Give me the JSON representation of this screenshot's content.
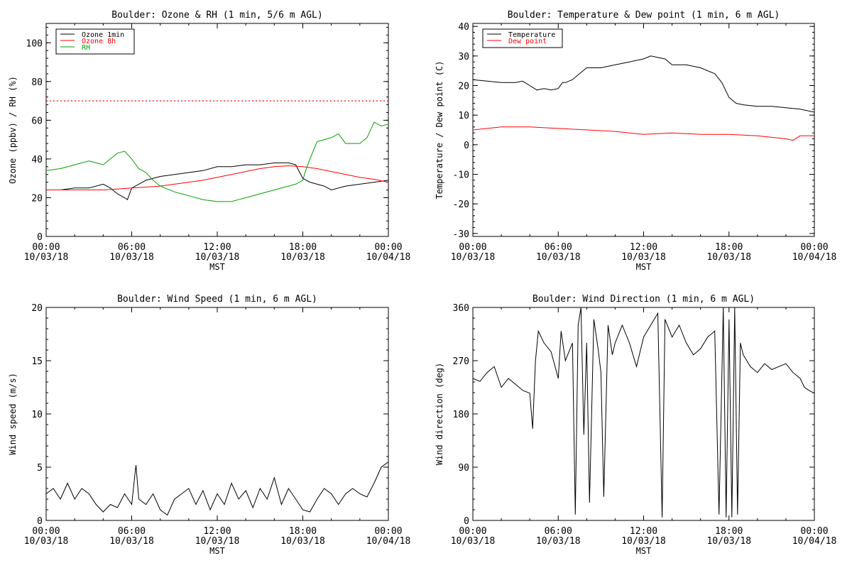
{
  "chart_data": [
    {
      "type": "line",
      "title": "Boulder: Ozone & RH (1 min, 5/6 m AGL)",
      "xlabel": "MST",
      "ylabel": "Ozone (ppbv) / RH (%)",
      "xlim": [
        0,
        24
      ],
      "ylim": [
        0,
        110
      ],
      "yticks": [
        0,
        20,
        40,
        60,
        80,
        100
      ],
      "xticks": [
        {
          "time": "00:00",
          "date": "10/03/18"
        },
        {
          "time": "06:00",
          "date": "10/03/18"
        },
        {
          "time": "12:00",
          "date": "10/03/18"
        },
        {
          "time": "18:00",
          "date": "10/03/18"
        },
        {
          "time": "00:00",
          "date": "10/04/18"
        }
      ],
      "legend_position": "top-left",
      "reference_line": {
        "y": 70,
        "color": "#ff0000",
        "style": "dotted"
      },
      "series": [
        {
          "name": "Ozone 1min",
          "color": "#000000",
          "x": [
            0,
            1,
            2,
            3,
            4,
            4.5,
            5,
            5.5,
            5.7,
            6,
            6.5,
            7,
            8,
            9,
            10,
            11,
            12,
            13,
            14,
            15,
            16,
            17,
            17.5,
            18,
            18.5,
            19,
            19.5,
            20,
            21,
            22,
            23,
            24
          ],
          "y": [
            24,
            24,
            25,
            25,
            27,
            25,
            22,
            20,
            19,
            25,
            27,
            29,
            31,
            32,
            33,
            34,
            36,
            36,
            37,
            37,
            38,
            38,
            37,
            30,
            28,
            27,
            26,
            24,
            26,
            27,
            28,
            29
          ]
        },
        {
          "name": "Ozone 8h",
          "color": "#ff0000",
          "x": [
            0,
            2,
            4,
            5,
            6,
            7,
            8,
            9,
            10,
            11,
            12,
            13,
            14,
            15,
            16,
            17,
            18,
            19,
            20,
            21,
            22,
            23,
            24
          ],
          "y": [
            24,
            24,
            24,
            24.5,
            25,
            25.5,
            26,
            27,
            28,
            29,
            30.5,
            32,
            33.5,
            35,
            36,
            36.5,
            36,
            35,
            33.5,
            32,
            30.5,
            29.5,
            28
          ]
        },
        {
          "name": "RH",
          "color": "#00a000",
          "x": [
            0,
            1,
            2,
            2.5,
            3,
            4,
            4.5,
            5,
            5.5,
            6,
            6.5,
            7,
            7.5,
            8,
            9,
            10,
            11,
            12,
            13,
            13.5,
            14,
            15,
            16,
            17,
            17.5,
            18,
            18.2,
            18.5,
            19,
            20,
            20.5,
            21,
            22,
            22.5,
            23,
            23.5,
            24
          ],
          "y": [
            34,
            35,
            37,
            38,
            39,
            37,
            40,
            43,
            44,
            40,
            35,
            33,
            29,
            26,
            23,
            21,
            19,
            18,
            18,
            19,
            20,
            22,
            24,
            26,
            27,
            29,
            34,
            40,
            49,
            51,
            53,
            48,
            48,
            51,
            59,
            57,
            58
          ]
        }
      ]
    },
    {
      "type": "line",
      "title": "Boulder: Temperature & Dew point (1 min, 6 m AGL)",
      "xlabel": "MST",
      "ylabel": "Temperature / Dew point (C)",
      "xlim": [
        0,
        24
      ],
      "ylim": [
        -31,
        41
      ],
      "yticks": [
        -30,
        -20,
        -10,
        0,
        10,
        20,
        30,
        40
      ],
      "xticks": [
        {
          "time": "00:00",
          "date": "10/03/18"
        },
        {
          "time": "06:00",
          "date": "10/03/18"
        },
        {
          "time": "12:00",
          "date": "10/03/18"
        },
        {
          "time": "18:00",
          "date": "10/03/18"
        },
        {
          "time": "00:00",
          "date": "10/04/18"
        }
      ],
      "legend_position": "top-left",
      "series": [
        {
          "name": "Temperature",
          "color": "#000000",
          "x": [
            0,
            1,
            2,
            3,
            3.5,
            4,
            4.5,
            5,
            5.5,
            6,
            6.3,
            6.5,
            7,
            7.5,
            8,
            9,
            10,
            11,
            12,
            12.5,
            13,
            13.5,
            14,
            15,
            16,
            17,
            17.5,
            18,
            18.5,
            19,
            20,
            21,
            22,
            23,
            24
          ],
          "y": [
            22,
            21.5,
            21,
            21,
            21.5,
            20,
            18.5,
            19,
            18.5,
            19,
            21,
            21,
            22,
            24,
            26,
            26,
            27,
            28,
            29,
            30,
            29.5,
            29,
            27,
            27,
            26,
            24,
            21,
            16,
            14,
            13.5,
            13,
            13,
            12.5,
            12,
            11
          ]
        },
        {
          "name": "Dew point",
          "color": "#ff0000",
          "x": [
            0,
            2,
            4,
            6,
            8,
            10,
            12,
            14,
            16,
            18,
            20,
            22,
            22.5,
            23,
            24
          ],
          "y": [
            5,
            6,
            6,
            5.5,
            5,
            4.5,
            3.5,
            4,
            3.5,
            3.5,
            3,
            2,
            1.5,
            3,
            3
          ]
        }
      ]
    },
    {
      "type": "line",
      "title": "Boulder: Wind Speed (1 min, 6 m AGL)",
      "xlabel": "MST",
      "ylabel": "Wind speed (m/s)",
      "xlim": [
        0,
        24
      ],
      "ylim": [
        0,
        20
      ],
      "yticks": [
        0,
        5,
        10,
        15,
        20
      ],
      "xticks": [
        {
          "time": "00:00",
          "date": "10/03/18"
        },
        {
          "time": "06:00",
          "date": "10/03/18"
        },
        {
          "time": "12:00",
          "date": "10/03/18"
        },
        {
          "time": "18:00",
          "date": "10/03/18"
        },
        {
          "time": "00:00",
          "date": "10/04/18"
        }
      ],
      "series": [
        {
          "name": "",
          "color": "#000000",
          "x": [
            0,
            0.5,
            1,
            1.5,
            2,
            2.5,
            3,
            3.5,
            4,
            4.5,
            5,
            5.5,
            6,
            6.3,
            6.5,
            7,
            7.5,
            8,
            8.5,
            9,
            9.5,
            10,
            10.5,
            11,
            11.5,
            12,
            12.5,
            13,
            13.5,
            14,
            14.5,
            15,
            15.5,
            16,
            16.5,
            17,
            17.5,
            18,
            18.5,
            19,
            19.5,
            20,
            20.5,
            21,
            21.5,
            22,
            22.5,
            23,
            23.5,
            24
          ],
          "y": [
            2.5,
            3,
            2,
            3.5,
            2,
            3,
            2.5,
            1.5,
            0.8,
            1.5,
            1.2,
            2.5,
            1.5,
            5.2,
            2,
            1.5,
            2.5,
            1,
            0.5,
            2,
            2.5,
            3,
            1.5,
            2.8,
            1,
            2.5,
            1.5,
            3.5,
            2,
            2.8,
            1.2,
            3,
            2,
            4,
            1.5,
            3,
            2,
            1,
            0.8,
            2,
            3,
            2.5,
            1.5,
            2.5,
            3,
            2.5,
            2.2,
            3.5,
            5,
            5.5
          ]
        }
      ]
    },
    {
      "type": "line",
      "title": "Boulder: Wind Direction (1 min, 6 m AGL)",
      "xlabel": "MST",
      "ylabel": "Wind direction (deg)",
      "xlim": [
        0,
        24
      ],
      "ylim": [
        0,
        360
      ],
      "yticks": [
        0,
        90,
        180,
        270,
        360
      ],
      "xticks": [
        {
          "time": "00:00",
          "date": "10/03/18"
        },
        {
          "time": "06:00",
          "date": "10/03/18"
        },
        {
          "time": "12:00",
          "date": "10/03/18"
        },
        {
          "time": "18:00",
          "date": "10/03/18"
        },
        {
          "time": "00:00",
          "date": "10/04/18"
        }
      ],
      "series": [
        {
          "name": "",
          "color": "#000000",
          "x": [
            0,
            0.5,
            1,
            1.5,
            2,
            2.5,
            3,
            3.5,
            4,
            4.2,
            4.4,
            4.6,
            5,
            5.5,
            6,
            6.2,
            6.5,
            7,
            7.2,
            7.4,
            7.6,
            7.8,
            8,
            8.2,
            8.5,
            8.8,
            9,
            9.2,
            9.5,
            9.8,
            10,
            10.5,
            11,
            11.5,
            12,
            12.5,
            13,
            13.3,
            13.5,
            14,
            14.5,
            15,
            15.5,
            16,
            16.5,
            17,
            17.3,
            17.6,
            17.8,
            18,
            18.2,
            18.4,
            18.6,
            18.8,
            19,
            19.5,
            20,
            20.5,
            21,
            21.5,
            22,
            22.5,
            23,
            23.3,
            23.6,
            24
          ],
          "y": [
            240,
            235,
            250,
            260,
            225,
            240,
            230,
            220,
            215,
            155,
            270,
            320,
            300,
            285,
            240,
            320,
            270,
            300,
            10,
            330,
            360,
            145,
            300,
            30,
            340,
            290,
            250,
            40,
            330,
            280,
            300,
            330,
            300,
            260,
            310,
            330,
            350,
            5,
            340,
            310,
            330,
            300,
            280,
            290,
            310,
            320,
            10,
            360,
            5,
            340,
            5,
            360,
            10,
            300,
            280,
            260,
            250,
            265,
            255,
            260,
            265,
            250,
            240,
            225,
            220,
            215
          ]
        }
      ]
    }
  ]
}
